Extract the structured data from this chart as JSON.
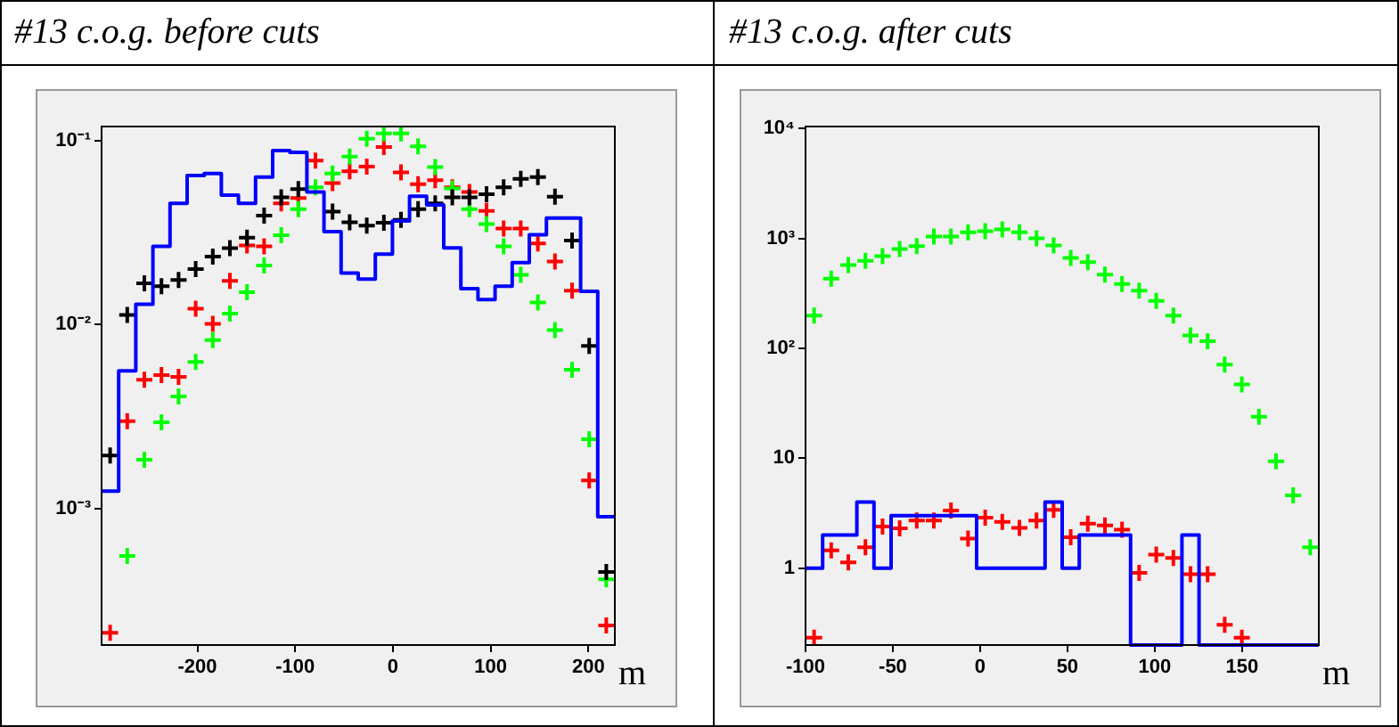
{
  "chart_data": [
    {
      "type": "scatter",
      "title": "#13 c.o.g. before cuts",
      "xlabel": "m",
      "log": "y",
      "marker": "cross",
      "x": [
        -289.25,
        -271.75,
        -254.25,
        -236.75,
        -219.25,
        -201.75,
        -184.25,
        -166.75,
        -149.25,
        -131.75,
        -114.25,
        -96.75,
        -79.25,
        -61.75,
        -44.25,
        -26.75,
        -9.25,
        8.25,
        25.75,
        43.25,
        60.75,
        78.25,
        95.75,
        113.25,
        130.75,
        148.25,
        165.75,
        183.25,
        200.75,
        218.25
      ],
      "xlim": [
        -298,
        227
      ],
      "xticks": [
        -200,
        -100,
        0,
        100,
        200
      ],
      "ylim": [
        0.00018,
        0.12
      ],
      "yticks": [
        {
          "value": 0.1,
          "label": "10⁻¹"
        },
        {
          "value": 0.01,
          "label": "10⁻²"
        },
        {
          "value": 0.001,
          "label": "10⁻³"
        }
      ],
      "series": [
        {
          "type": "histogram",
          "color": "#0000ff",
          "bins": [
            -298,
            -280.5,
            -263,
            -245.5,
            -228,
            -210.5,
            -193,
            -175.5,
            -158,
            -140.5,
            -123,
            -105.5,
            -88,
            -70.5,
            -53,
            -35.5,
            -18,
            -0.5,
            17,
            34.5,
            52,
            69.5,
            87,
            104.5,
            122,
            139.5,
            157,
            174.5,
            192,
            209.5,
            227
          ],
          "values": [
            0.00124,
            0.0056,
            0.0129,
            0.0267,
            0.0458,
            0.065,
            0.0665,
            0.0508,
            0.0458,
            0.0636,
            0.0888,
            0.0868,
            0.0528,
            0.0321,
            0.0191,
            0.0177,
            0.0242,
            0.0367,
            0.0501,
            0.0449,
            0.0262,
            0.0157,
            0.0137,
            0.0162,
            0.0218,
            0.0309,
            0.0381,
            0.0381,
            0.0152,
            0.0009
          ]
        },
        {
          "type": "scatter",
          "color": "#000000",
          "values": [
            0.00194,
            0.0113,
            0.0168,
            0.0162,
            0.0175,
            0.0201,
            0.0235,
            0.0261,
            0.0298,
            0.0393,
            0.0494,
            0.0548,
            null,
            0.0413,
            0.0361,
            0.0346,
            0.0359,
            0.0372,
            0.0426,
            0.0458,
            0.0494,
            0.0494,
            0.0513,
            0.056,
            0.0622,
            0.0636,
            0.0498,
            0.0287,
            0.00766,
            0.00045
          ]
        },
        {
          "type": "scatter",
          "color": "#00ff00",
          "values": [
            null,
            0.00055,
            0.00184,
            0.00294,
            0.00407,
            0.00627,
            0.00825,
            0.0115,
            0.015,
            0.021,
            0.0307,
            0.0426,
            0.056,
            0.0665,
            0.0824,
            0.103,
            0.11,
            0.11,
            0.0935,
            0.0721,
            0.0552,
            0.0426,
            0.0353,
            0.0267,
            0.0187,
            0.0132,
            0.00935,
            0.00569,
            0.00238,
            0.00041
          ]
        },
        {
          "type": "scatter",
          "color": "#ff0000",
          "values": [
            0.00021,
            0.00298,
            0.00501,
            0.00532,
            0.0052,
            0.0122,
            0.0101,
            0.0173,
            0.027,
            0.0267,
            0.0458,
            0.049,
            0.0783,
            0.059,
            0.0684,
            0.0726,
            0.0929,
            0.0675,
            0.0582,
            0.0612,
            0.056,
            0.0528,
            0.0416,
            0.0334,
            0.0334,
            0.0277,
            0.0221,
            0.0153,
            0.00142,
            0.00023
          ]
        }
      ]
    },
    {
      "type": "scatter",
      "title": "#13 c.o.g. after cuts",
      "xlabel": "m",
      "log": "y",
      "marker": "cross",
      "x": [
        -95.1,
        -85.3,
        -75.5,
        -65.7,
        -55.9,
        -46.1,
        -36.3,
        -26.5,
        -16.7,
        -6.9,
        2.9,
        12.7,
        22.5,
        32.3,
        42.1,
        51.9,
        61.7,
        71.5,
        81.3,
        91.1,
        100.9,
        110.7,
        120.5,
        130.3,
        140.1,
        149.9,
        159.7,
        169.5,
        179.3,
        189.1
      ],
      "xlim": [
        -100,
        194
      ],
      "xticks": [
        -100,
        -50,
        0,
        50,
        100,
        150
      ],
      "ylim": [
        0.2,
        10400
      ],
      "yticks": [
        {
          "value": 10000,
          "label": "10⁴"
        },
        {
          "value": 1000,
          "label": "10³"
        },
        {
          "value": 100,
          "label": "10²"
        },
        10,
        1
      ],
      "series": [
        {
          "type": "histogram",
          "color": "#0000ff",
          "bins": [
            -100,
            -90.2,
            -80.4,
            -70.6,
            -60.8,
            -51,
            -41.2,
            -31.4,
            -21.6,
            -11.8,
            -2,
            7.8,
            17.6,
            27.4,
            37.2,
            47,
            56.8,
            66.6,
            76.4,
            86.2,
            96,
            105.8,
            115.6,
            125.4,
            135.2,
            145,
            154.8,
            164.6,
            174.4,
            184.2,
            194
          ],
          "values": [
            1,
            2,
            2,
            4,
            1,
            3,
            3,
            3,
            3,
            3,
            1,
            1,
            1,
            1,
            4,
            1,
            2,
            2,
            2,
            null,
            null,
            null,
            2,
            null,
            null,
            null,
            null,
            null,
            null,
            null
          ]
        },
        {
          "type": "scatter",
          "color": "#00ff00",
          "values": [
            198,
            429,
            571,
            624,
            689,
            800,
            851,
            1038,
            1038,
            1133,
            1161,
            1205,
            1133,
            1000,
            861,
            663,
            608,
            468,
            384,
            334,
            270,
            198,
            131,
            116,
            71,
            47,
            23.9,
            9.4,
            4.6,
            1.55
          ]
        },
        {
          "type": "scatter",
          "color": "#ff0000",
          "values": [
            0.233,
            1.45,
            1.13,
            1.55,
            2.39,
            2.3,
            2.71,
            2.71,
            3.34,
            1.86,
            2.88,
            2.64,
            2.33,
            2.71,
            3.39,
            1.91,
            2.54,
            2.45,
            2.24,
            0.905,
            1.33,
            1.24,
            0.88,
            0.88,
            0.306,
            0.233,
            null,
            null,
            null,
            null
          ]
        }
      ]
    }
  ]
}
